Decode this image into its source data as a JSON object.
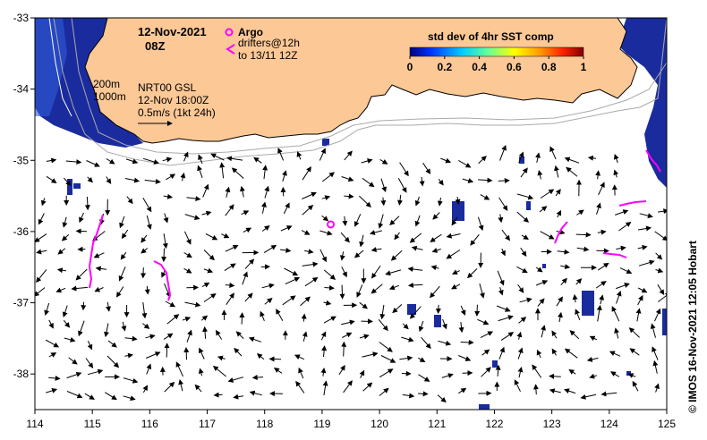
{
  "header": {
    "date": "12-Nov-2021",
    "time": "08Z",
    "argo_label": "Argo",
    "drifters_line1": "drifters@12h",
    "drifters_line2": "to 13/11 12Z"
  },
  "contours": {
    "label1": "200m",
    "label2": "1000m"
  },
  "current_info": {
    "line1": "NRT00 GSL",
    "line2": "12-Nov 18:00Z",
    "line3": "0.5m/s (1kt 24h)"
  },
  "colorbar": {
    "title": "std dev of 4hr SST comp",
    "ticks": [
      "0",
      "0.2",
      "0.4",
      "0.6",
      "0.8",
      "1"
    ],
    "colors": [
      "#000080",
      "#0033ff",
      "#00ccff",
      "#66ff99",
      "#ffff00",
      "#ff9900",
      "#ff2200",
      "#800000"
    ]
  },
  "axes": {
    "x_ticks": [
      "114",
      "115",
      "116",
      "117",
      "118",
      "119",
      "120",
      "121",
      "122",
      "123",
      "124",
      "125"
    ],
    "y_ticks": [
      "-33",
      "-34",
      "-35",
      "-36",
      "-37",
      "-38"
    ],
    "xlim": [
      114,
      125
    ],
    "ylim": [
      -38.5,
      -33
    ]
  },
  "credit": "© IMOS 16-Nov-2021 12:05 Hobart",
  "colors": {
    "land": "#fbc896",
    "ocean": "#ffffff",
    "cloud": "#ffffff",
    "sst_low": "#1a2b9e",
    "argo": "#ff00ff",
    "drifter": "#ff00ff",
    "contour": "#aaaaaa"
  },
  "argo_floats": [
    {
      "lon": 119.15,
      "lat": -35.9
    }
  ]
}
